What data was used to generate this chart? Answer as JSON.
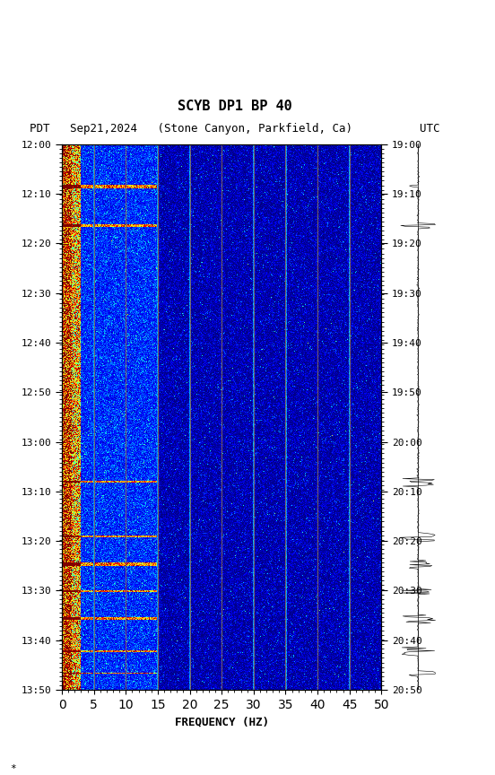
{
  "title_line1": "SCYB DP1 BP 40",
  "title_line2": "PDT   Sep21,2024   (Stone Canyon, Parkfield, Ca)          UTC",
  "xlabel": "FREQUENCY (HZ)",
  "left_times": [
    "12:00",
    "12:10",
    "12:20",
    "12:30",
    "12:40",
    "12:50",
    "13:00",
    "13:10",
    "13:20",
    "13:30",
    "13:40",
    "13:50"
  ],
  "right_times": [
    "19:00",
    "19:10",
    "19:20",
    "19:30",
    "19:40",
    "19:50",
    "20:00",
    "20:10",
    "20:10",
    "20:20",
    "20:30",
    "20:40",
    "20:50"
  ],
  "right_times_clean": [
    "19:00",
    "19:10",
    "19:20",
    "19:30",
    "19:40",
    "19:50",
    "20:00",
    "20:10",
    "20:20",
    "20:30",
    "20:40",
    "20:50"
  ],
  "freq_min": 0,
  "freq_max": 50,
  "freq_ticks": [
    0,
    5,
    10,
    15,
    20,
    25,
    30,
    35,
    40,
    45,
    50
  ],
  "freq_gridlines": [
    5,
    10,
    15,
    20,
    25,
    30,
    35,
    40,
    45
  ],
  "time_steps": 12,
  "background_color": "#ffffff",
  "spectrogram_bg": "#00008B",
  "colormap": "jet",
  "fig_width": 5.52,
  "fig_height": 8.64
}
